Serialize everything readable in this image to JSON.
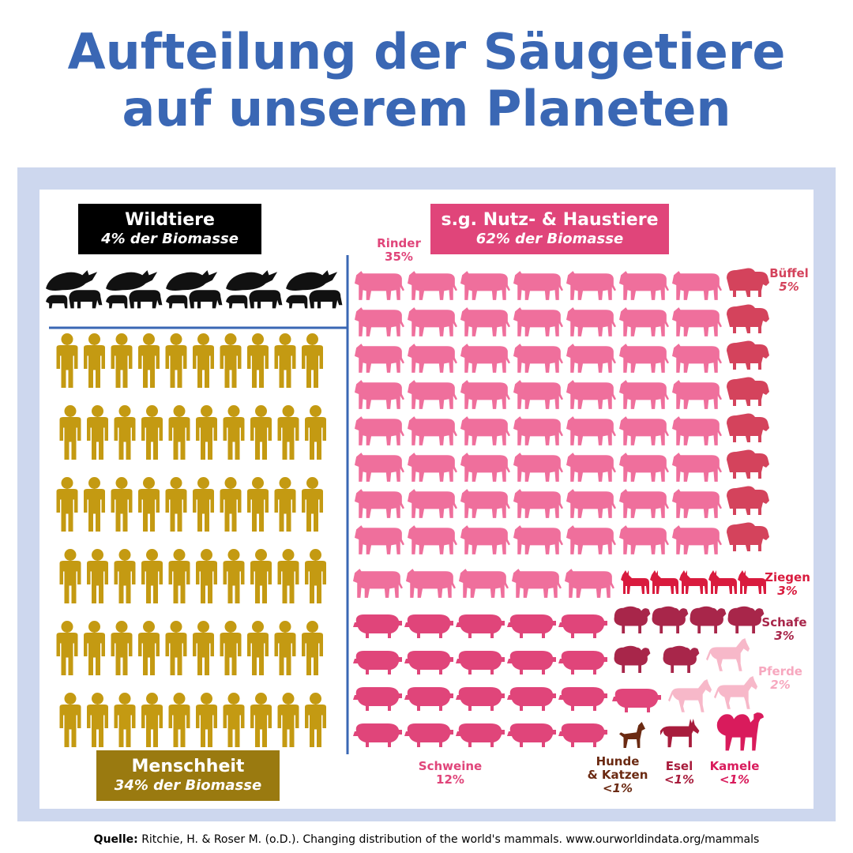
{
  "title": {
    "line1": "Aufteilung der Säugetiere",
    "line2": "auf unserem Planeten"
  },
  "groups": {
    "wild": {
      "title": "Wildtiere",
      "subtitle": "4% der Biomasse",
      "color": "#000000"
    },
    "human": {
      "title": "Menschheit",
      "subtitle": "34% der Biomasse",
      "color": "#9a7a10"
    },
    "livestock": {
      "title": "s.g. Nutz- & Haustiere",
      "subtitle": "62% der Biomasse",
      "color": "#e0457a"
    }
  },
  "source": {
    "label": "Quelle:",
    "text": "Ritchie, H. & Roser M. (o.D.). Changing distribution of the world's mammals. www.ourworldindata.org/mammals"
  },
  "chart_data": {
    "type": "pictogram",
    "unit": "% der Biomasse",
    "categories": [
      {
        "name": "Wildtiere",
        "value": 4,
        "icon": "whale-lion-elephant-icon",
        "color": "#111111",
        "icons": 5
      },
      {
        "name": "Menschheit",
        "value": 34,
        "icon": "person-icon",
        "color": "#c49a12",
        "icons": 60
      },
      {
        "name": "Rinder",
        "label": "Rinder",
        "value_label": "35%",
        "value": 35,
        "icon": "cow-icon",
        "color": "#ef6f9c",
        "icons": 61
      },
      {
        "name": "Büffel",
        "label": "Büffel",
        "value_label": "5%",
        "value": 5,
        "icon": "buffalo-icon",
        "color": "#d4435c",
        "icons": 8
      },
      {
        "name": "Ziegen",
        "label": "Ziegen",
        "value_label": "3%",
        "value": 3,
        "icon": "goat-icon",
        "color": "#d91b3e",
        "icons": 5
      },
      {
        "name": "Schafe",
        "label": "Schafe",
        "value_label": "3%",
        "value": 3,
        "icon": "sheep-icon",
        "color": "#a8264a",
        "icons": 6
      },
      {
        "name": "Pferde",
        "label": "Pferde",
        "value_label": "2%",
        "value": 2,
        "icon": "horse-icon",
        "color": "#f7b8c9",
        "icons": 3
      },
      {
        "name": "Schweine",
        "label": "Schweine",
        "value_label": "12%",
        "value": 12,
        "icon": "pig-icon",
        "color": "#e0457a",
        "icons": 21
      },
      {
        "name": "Hunde & Katzen",
        "label1": "Hunde",
        "label2": "& Katzen",
        "value_label": "<1%",
        "value": 0.5,
        "icon": "dog-icon",
        "color": "#6b2a12",
        "icons": 1
      },
      {
        "name": "Esel",
        "label": "Esel",
        "value_label": "<1%",
        "value": 0.5,
        "icon": "donkey-icon",
        "color": "#a81c3c",
        "icons": 1
      },
      {
        "name": "Kamele",
        "label": "Kamele",
        "value_label": "<1%",
        "value": 0.5,
        "icon": "camel-icon",
        "color": "#d91b5c",
        "icons": 1
      }
    ]
  }
}
